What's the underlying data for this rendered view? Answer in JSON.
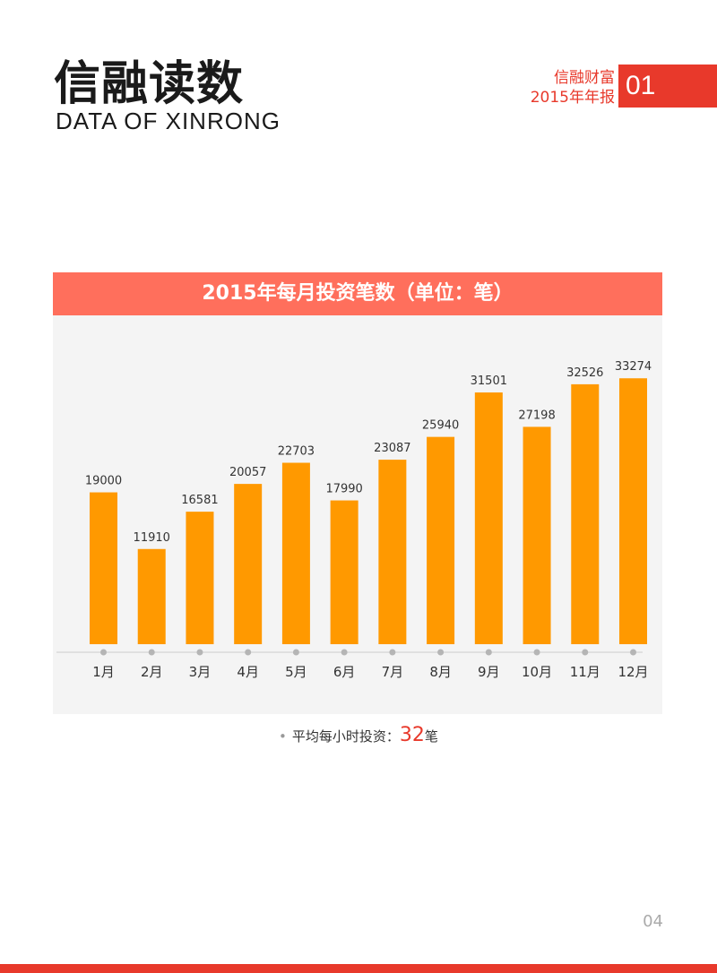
{
  "header": {
    "title_cn": "信融读数",
    "title_en": "DATA OF XINRONG",
    "company": "信融财富",
    "report": "2015年年报",
    "section_num": "01"
  },
  "colors": {
    "accent": "#e8392b",
    "bar": "#ff9900",
    "chart_header": "#ff6f5c",
    "chart_bg": "#f4f4f4"
  },
  "chart_data": {
    "type": "bar",
    "title": "2015年每月投资笔数（单位：笔）",
    "categories": [
      "1月",
      "2月",
      "3月",
      "4月",
      "5月",
      "6月",
      "7月",
      "8月",
      "9月",
      "10月",
      "11月",
      "12月"
    ],
    "values": [
      19000,
      11910,
      16581,
      20057,
      22703,
      17990,
      23087,
      25940,
      31501,
      27198,
      32526,
      33274
    ],
    "ylim": [
      0,
      37000
    ],
    "grid": false,
    "legend": "none"
  },
  "summary": {
    "label": "平均每小时投资：",
    "value": "32",
    "unit": "笔"
  },
  "page_number": "04"
}
